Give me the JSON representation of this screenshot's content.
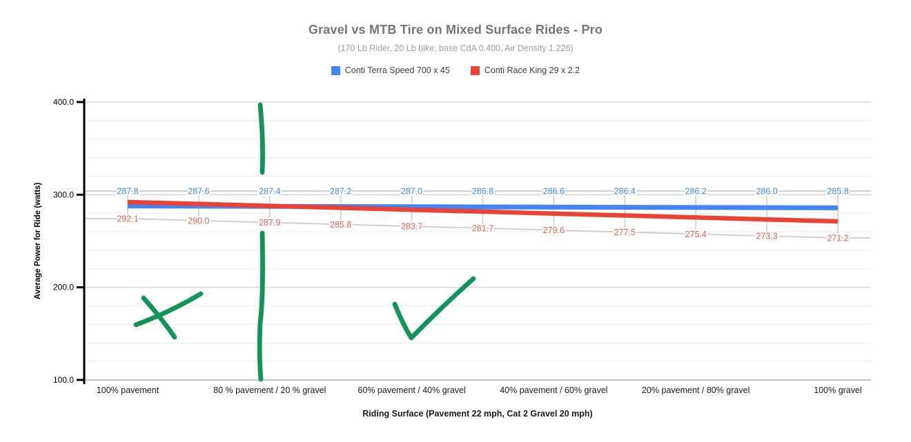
{
  "chart_data": {
    "type": "line",
    "title": "Gravel vs MTB Tire on Mixed Surface Rides - Pro",
    "subtitle": "(170 Lb Rider, 20 Lb bike, base CdA 0.400, Air Density 1.226)",
    "xlabel": "Riding Surface (Pavement 22 mph, Cat 2 Gravel 20 mph)",
    "ylabel": "Average Power for Ride (watts)",
    "ylim": [
      100,
      400
    ],
    "ytick_labels": [
      "100.0",
      "200.0",
      "300.0",
      "400.0"
    ],
    "minor_gridline_step_watts": 20,
    "grid": true,
    "legend_position": "top",
    "num_points": 11,
    "x_tick_labels": [
      "100% pavement",
      "80 % pavement / 20 % gravel",
      "60% pavement / 40% gravel",
      "40% pavement / 60% gravel",
      "20% pavement / 80% gravel",
      "100% gravel"
    ],
    "x_tick_point_indices": [
      0,
      2,
      4,
      6,
      8,
      10
    ],
    "series": [
      {
        "name": "Conti Terra Speed 700 x 45",
        "color": "#4285f4",
        "label_color": "#4285f4",
        "values": [
          287.8,
          287.6,
          287.4,
          287.2,
          287.0,
          286.8,
          286.6,
          286.4,
          286.2,
          286.0,
          285.8
        ],
        "labels": [
          "287.8",
          "287.6",
          "287.4",
          "287.2",
          "287.0",
          "286.8",
          "286.6",
          "286.4",
          "286.2",
          "286.0",
          "285.8"
        ]
      },
      {
        "name": "Conti Race King 29 x 2.2",
        "color": "#ea4335",
        "label_color": "#e25e51",
        "values": [
          292.1,
          290.0,
          287.9,
          285.8,
          283.7,
          281.7,
          279.6,
          277.5,
          275.4,
          273.3,
          271.2
        ],
        "labels": [
          "292.1",
          "290.0",
          "287.9",
          "285.8",
          "283.7",
          "281.7",
          "279.6",
          "277.5",
          "275.4",
          "273.3",
          "271.2"
        ]
      }
    ],
    "annotations": {
      "color": "#119457",
      "marks": [
        "x-mark",
        "check-mark",
        "vertical-line-upper",
        "vertical-line-lower"
      ]
    }
  }
}
